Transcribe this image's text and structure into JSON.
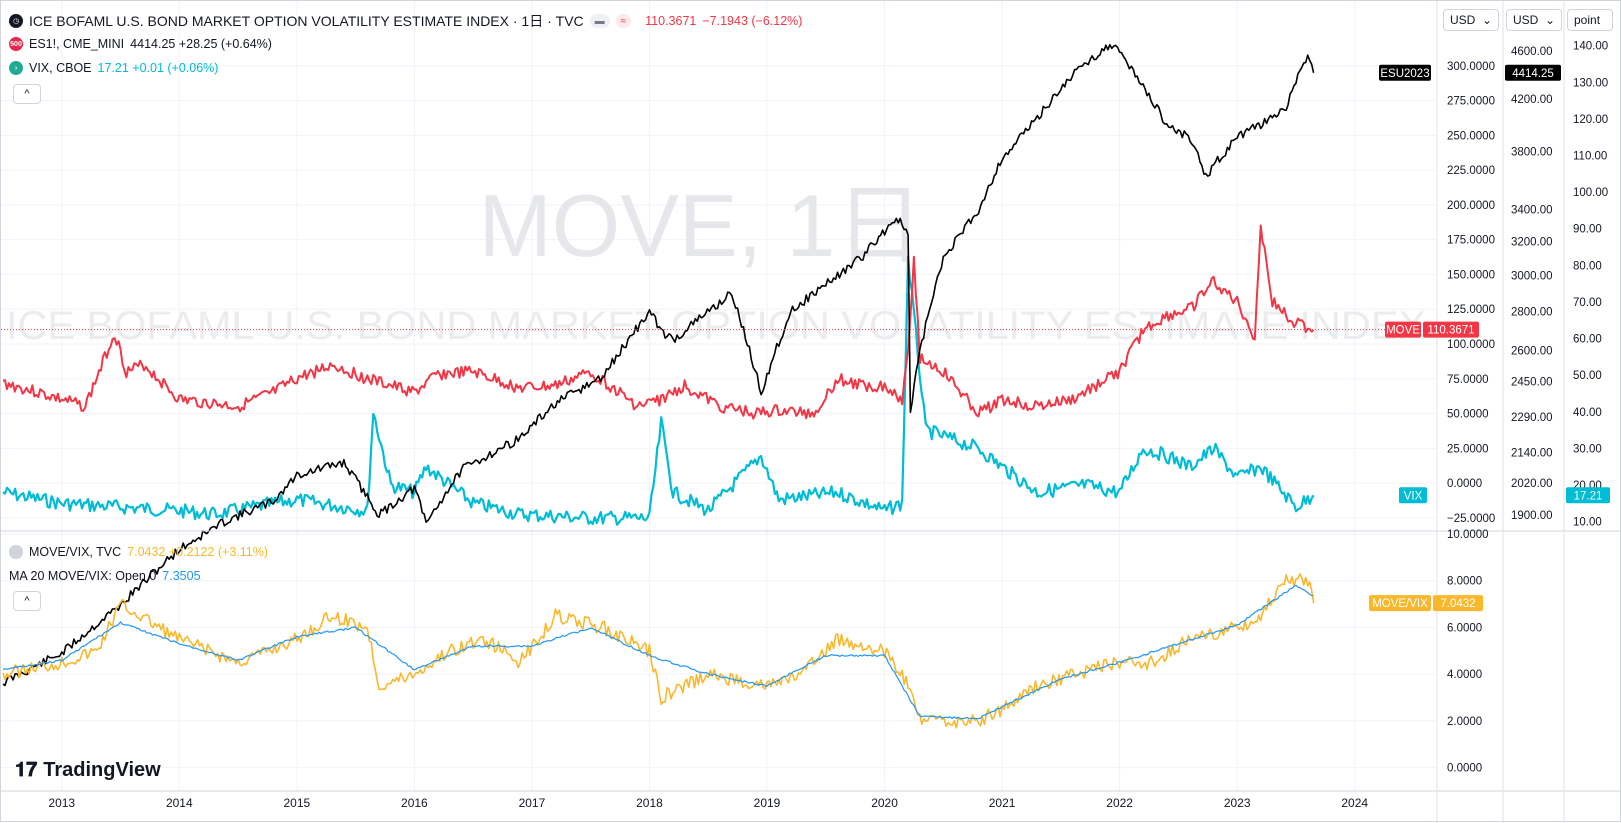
{
  "header": {
    "main_title": "ICE BOFAML U.S. BOND MARKET OPTION VOLATILITY ESTIMATE INDEX · 1日 · TVC",
    "main_price": "110.3671",
    "main_change": "−7.1943 (−6.12%)",
    "icons": [
      "clock-icon",
      "minus-icon",
      "approx-icon"
    ]
  },
  "legends": [
    {
      "badge": "500",
      "name": "ES1!, CME_MINI",
      "value": "4414.25 +28.25 (+0.64%)",
      "value_color": "#131722",
      "dot_color": "#e8294b"
    },
    {
      "badge": "",
      "name": "VIX, CBOE",
      "value": "17.21 +0.01 (+0.06%)",
      "value_color": "#00bcd4",
      "dot_color": "#22ab94"
    }
  ],
  "lower_legends": [
    {
      "name": "MOVE/VIX, TVC",
      "value": "7.0432 +0.2122 (+3.11%)",
      "value_color": "#f9b82c"
    },
    {
      "name": "MA 20 MOVE/VIX: Open 0",
      "value": "7.3505",
      "value_color": "#2196f3"
    }
  ],
  "toggle_label": "^",
  "selectors": [
    {
      "label": "USD"
    },
    {
      "label": "USD"
    },
    {
      "label": "point"
    }
  ],
  "watermark": {
    "big": "MOVE, 1日",
    "long": "ICE BOFAML U.S. BOND MARKET OPTION VOLATILITY ESTIMATE INDEX"
  },
  "branding": "TradingView",
  "colors": {
    "move": "#f23645",
    "es": "#000000",
    "vix": "#00bcd4",
    "ratio": "#f9b82c",
    "ma": "#2196f3",
    "grid": "#f0f3fa"
  },
  "chart_data": {
    "type": "line",
    "x_axis": {
      "ticks": [
        "2013",
        "2014",
        "2015",
        "2016",
        "2017",
        "2018",
        "2019",
        "2020",
        "2021",
        "2022",
        "2023",
        "2024"
      ],
      "range": [
        2012.5,
        2024.7
      ]
    },
    "axes": {
      "move": {
        "ticks": [
          "300.0000",
          "275.0000",
          "250.0000",
          "225.0000",
          "200.0000",
          "175.0000",
          "150.0000",
          "125.0000",
          "100.0000",
          "75.0000",
          "50.0000",
          "25.0000",
          "0.0000",
          "−25.0000"
        ],
        "range": [
          -33,
          325
        ]
      },
      "es": {
        "ticks": [
          "4600.00",
          "4200.00",
          "3800.00",
          "3400.00",
          "3200.00",
          "3000.00",
          "2800.00",
          "2600.00",
          "2450.00",
          "2290.00",
          "2140.00",
          "2020.00",
          "1900.00"
        ],
        "scale": "log"
      },
      "vix": {
        "ticks": [
          "140.00",
          "130.00",
          "120.00",
          "110.00",
          "100.00",
          "90.00",
          "80.00",
          "70.00",
          "60.00",
          "50.00",
          "40.00",
          "30.00",
          "20.00",
          "10.00"
        ],
        "range": [
          8,
          144
        ]
      },
      "ratio": {
        "ticks": [
          "10.0000",
          "8.0000",
          "6.0000",
          "4.0000",
          "2.0000",
          "0.0000"
        ],
        "range": [
          -1,
          10
        ]
      }
    },
    "last_labels": {
      "es": {
        "label": "ESU2023",
        "value": "4414.25"
      },
      "move": {
        "label": "MOVE",
        "value": "110.3671"
      },
      "vix": {
        "label": "VIX",
        "value": "17.21"
      },
      "ratio": {
        "label": "MOVE/VIX",
        "value": "7.0432"
      }
    },
    "series": [
      {
        "name": "MOVE",
        "x": [
          2012.5,
          2012.8,
          2013.2,
          2013.45,
          2013.55,
          2013.7,
          2014.0,
          2014.5,
          2014.8,
          2015.0,
          2015.3,
          2015.6,
          2016.0,
          2016.2,
          2016.5,
          2016.9,
          2017.2,
          2017.5,
          2017.9,
          2018.1,
          2018.3,
          2018.6,
          2018.9,
          2019.1,
          2019.4,
          2019.6,
          2019.8,
          2020.0,
          2020.15,
          2020.2,
          2020.25,
          2020.3,
          2020.5,
          2020.8,
          2021.0,
          2021.3,
          2021.6,
          2021.9,
          2022.0,
          2022.2,
          2022.4,
          2022.6,
          2022.8,
          2023.0,
          2023.15,
          2023.2,
          2023.3,
          2023.5,
          2023.65
        ],
        "y": [
          72,
          65,
          55,
          108,
          80,
          85,
          60,
          55,
          65,
          75,
          85,
          75,
          65,
          78,
          80,
          68,
          70,
          80,
          55,
          60,
          70,
          55,
          50,
          52,
          50,
          75,
          70,
          70,
          60,
          100,
          160,
          90,
          80,
          50,
          60,
          55,
          60,
          75,
          80,
          110,
          120,
          125,
          145,
          130,
          105,
          185,
          130,
          115,
          110
        ]
      },
      {
        "name": "ES1!, CME_MINI",
        "x": [
          2012.5,
          2013.0,
          2013.5,
          2014.0,
          2014.4,
          2014.8,
          2015.0,
          2015.4,
          2015.7,
          2016.0,
          2016.1,
          2016.4,
          2016.9,
          2017.2,
          2017.6,
          2018.0,
          2018.1,
          2018.2,
          2018.7,
          2018.95,
          2019.2,
          2019.5,
          2019.8,
          2020.1,
          2020.2,
          2020.22,
          2020.3,
          2020.5,
          2020.8,
          2021.0,
          2021.3,
          2021.6,
          2021.9,
          2022.0,
          2022.2,
          2022.4,
          2022.6,
          2022.75,
          2022.8,
          2023.0,
          2023.2,
          2023.4,
          2023.5,
          2023.6,
          2023.65
        ],
        "y": [
          1380,
          1460,
          1600,
          1780,
          1880,
          1950,
          2050,
          2100,
          1900,
          2000,
          1870,
          2070,
          2200,
          2350,
          2470,
          2800,
          2700,
          2650,
          2900,
          2400,
          2800,
          2950,
          3100,
          3350,
          3250,
          2300,
          2600,
          3100,
          3400,
          3750,
          4050,
          4400,
          4650,
          4600,
          4300,
          4000,
          3900,
          3600,
          3700,
          3900,
          4000,
          4100,
          4350,
          4550,
          4414
        ]
      },
      {
        "name": "VIX, CBOE",
        "x": [
          2012.5,
          2013.0,
          2013.5,
          2014.0,
          2014.3,
          2014.8,
          2015.0,
          2015.6,
          2015.65,
          2015.8,
          2016.0,
          2016.1,
          2016.5,
          2016.9,
          2017.5,
          2018.0,
          2018.1,
          2018.2,
          2018.5,
          2018.95,
          2019.1,
          2019.6,
          2020.0,
          2020.15,
          2020.2,
          2020.35,
          2020.8,
          2021.0,
          2021.3,
          2021.7,
          2022.0,
          2022.2,
          2022.4,
          2022.6,
          2022.8,
          2023.0,
          2023.2,
          2023.5,
          2023.65
        ],
        "y": [
          18,
          15,
          14,
          13,
          12,
          15,
          16,
          13,
          40,
          20,
          18,
          25,
          15,
          12,
          11,
          11,
          37,
          18,
          13,
          28,
          16,
          18,
          13,
          15,
          82,
          35,
          30,
          25,
          18,
          20,
          18,
          30,
          28,
          25,
          30,
          22,
          25,
          14,
          17.21
        ]
      },
      {
        "name": "MOVE/VIX, TVC",
        "x": [
          2012.5,
          2013.0,
          2013.3,
          2013.5,
          2014.0,
          2014.5,
          2015.0,
          2015.3,
          2015.6,
          2015.7,
          2016.0,
          2016.3,
          2016.6,
          2016.9,
          2017.2,
          2017.6,
          2018.0,
          2018.1,
          2018.5,
          2019.0,
          2019.3,
          2019.6,
          2020.0,
          2020.2,
          2020.3,
          2020.8,
          2021.0,
          2021.3,
          2021.6,
          2022.0,
          2022.3,
          2022.6,
          2023.0,
          2023.2,
          2023.4,
          2023.6,
          2023.65
        ],
        "y": [
          4.0,
          4.5,
          5.0,
          7.0,
          5.5,
          4.5,
          5.5,
          6.5,
          6.0,
          3.5,
          4.0,
          5.0,
          5.5,
          4.5,
          6.5,
          6.0,
          5.0,
          3.0,
          4.0,
          3.5,
          4.0,
          5.5,
          5.0,
          3.5,
          2.0,
          2.0,
          2.5,
          3.5,
          4.0,
          4.5,
          4.5,
          5.5,
          6.0,
          6.5,
          8.0,
          8.0,
          7.0432
        ]
      },
      {
        "name": "MA 20 MOVE/VIX: Open 0",
        "x": [
          2012.5,
          2013.0,
          2013.5,
          2014.0,
          2014.5,
          2015.0,
          2015.5,
          2016.0,
          2016.5,
          2017.0,
          2017.5,
          2018.0,
          2018.5,
          2019.0,
          2019.5,
          2020.0,
          2020.3,
          2020.8,
          2021.0,
          2021.5,
          2022.0,
          2022.5,
          2023.0,
          2023.5,
          2023.65
        ],
        "y": [
          4.2,
          4.6,
          6.2,
          5.3,
          4.6,
          5.6,
          6.0,
          4.2,
          5.2,
          5.2,
          6.0,
          4.8,
          4.0,
          3.5,
          4.8,
          4.8,
          2.2,
          2.1,
          2.6,
          3.8,
          4.5,
          5.3,
          6.1,
          7.8,
          7.3505
        ]
      }
    ]
  }
}
